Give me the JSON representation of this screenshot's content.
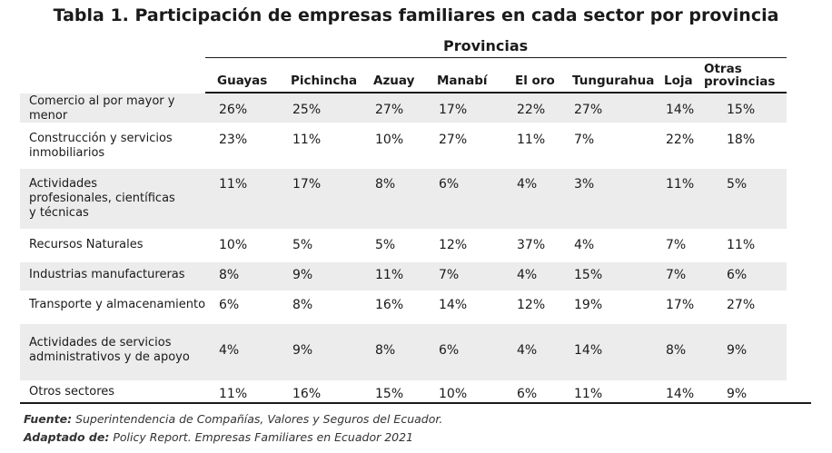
{
  "title": "Tabla 1. Participación de empresas familiares en cada sector por provincia",
  "group_header": "Provincias",
  "columns": [
    "Guayas",
    "Pichincha",
    "Azuay",
    "Manabí",
    "El oro",
    "Tungurahua",
    "Loja",
    "Otras provincias"
  ],
  "rows": [
    {
      "label": "Comercio al por mayor y menor",
      "values": [
        "26%",
        "25%",
        "27%",
        "17%",
        "22%",
        "27%",
        "14%",
        "15%"
      ]
    },
    {
      "label": "Construcción y servicios inmobiliarios",
      "values": [
        "23%",
        "11%",
        "10%",
        "27%",
        "11%",
        "7%",
        "22%",
        "18%"
      ]
    },
    {
      "label": "Actividades profesionales, científicas y técnicas",
      "values": [
        "11%",
        "17%",
        "8%",
        "6%",
        "4%",
        "3%",
        "11%",
        "5%"
      ]
    },
    {
      "label": "Recursos Naturales",
      "values": [
        "10%",
        "5%",
        "5%",
        "12%",
        "37%",
        "4%",
        "7%",
        "11%"
      ]
    },
    {
      "label": "Industrias manufactureras",
      "values": [
        "8%",
        "9%",
        "11%",
        "7%",
        "4%",
        "15%",
        "7%",
        "6%"
      ]
    },
    {
      "label": "Transporte y almacenamiento",
      "values": [
        "6%",
        "8%",
        "16%",
        "14%",
        "12%",
        "19%",
        "17%",
        "27%"
      ]
    },
    {
      "label": "Actividades de servicios administrativos y de apoyo",
      "values": [
        "4%",
        "9%",
        "8%",
        "6%",
        "4%",
        "14%",
        "8%",
        "9%"
      ]
    },
    {
      "label": "Otros sectores",
      "values": [
        "11%",
        "16%",
        "15%",
        "10%",
        "6%",
        "11%",
        "14%",
        "9%"
      ]
    }
  ],
  "footer": {
    "source_label": "Fuente:",
    "source_text": "Superintendencia de Compañías, Valores y Seguros del Ecuador.",
    "adapted_label": "Adaptado de:",
    "adapted_text": "Policy Report. Empresas Familiares en Ecuador 2021"
  }
}
